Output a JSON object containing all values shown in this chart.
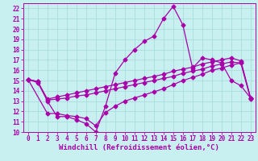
{
  "xlabel": "Windchill (Refroidissement éolien,°C)",
  "bg_color": "#c8f0f0",
  "grid_color": "#aadddd",
  "line_color": "#aa00aa",
  "xlim": [
    -0.5,
    23.5
  ],
  "ylim": [
    10,
    22.5
  ],
  "yticks": [
    10,
    11,
    12,
    13,
    14,
    15,
    16,
    17,
    18,
    19,
    20,
    21,
    22
  ],
  "xticks": [
    0,
    1,
    2,
    3,
    4,
    5,
    6,
    7,
    8,
    9,
    10,
    11,
    12,
    13,
    14,
    15,
    16,
    17,
    18,
    19,
    20,
    21,
    22,
    23
  ],
  "line1_x": [
    0,
    1,
    2,
    3,
    4,
    5,
    6,
    7,
    8,
    9,
    10,
    11,
    12,
    13,
    14,
    15,
    16,
    17,
    18,
    19,
    20,
    21,
    22,
    23
  ],
  "line1_y": [
    15.1,
    14.9,
    13.0,
    11.5,
    11.5,
    11.2,
    10.8,
    10.0,
    12.5,
    15.7,
    17.0,
    18.0,
    18.8,
    19.3,
    21.0,
    22.2,
    20.4,
    16.2,
    17.2,
    17.0,
    16.7,
    15.0,
    14.5,
    13.3
  ],
  "line2_x": [
    0,
    2,
    3,
    4,
    5,
    6,
    7,
    8,
    9,
    10,
    11,
    12,
    13,
    14,
    15,
    16,
    17,
    18,
    19,
    20,
    21,
    22,
    23
  ],
  "line2_y": [
    15.1,
    11.8,
    11.8,
    11.6,
    11.5,
    11.3,
    10.6,
    11.9,
    12.5,
    13.0,
    13.3,
    13.6,
    13.9,
    14.2,
    14.6,
    15.0,
    15.3,
    15.6,
    16.0,
    16.2,
    16.5,
    16.7,
    13.3
  ],
  "line3_x": [
    0,
    1,
    2,
    3,
    4,
    5,
    6,
    7,
    8,
    9,
    10,
    11,
    12,
    13,
    14,
    15,
    16,
    17,
    18,
    19,
    20,
    21,
    22,
    23
  ],
  "line3_y": [
    15.1,
    14.9,
    13.2,
    13.4,
    13.6,
    13.8,
    14.0,
    14.2,
    14.4,
    14.6,
    14.8,
    15.0,
    15.2,
    15.4,
    15.6,
    15.9,
    16.1,
    16.3,
    16.6,
    16.8,
    17.0,
    17.2,
    16.9,
    13.3
  ],
  "line4_x": [
    0,
    1,
    2,
    3,
    4,
    5,
    6,
    7,
    8,
    9,
    10,
    11,
    12,
    13,
    14,
    15,
    16,
    17,
    18,
    19,
    20,
    21,
    22,
    23
  ],
  "line4_y": [
    15.1,
    14.8,
    13.1,
    13.2,
    13.3,
    13.5,
    13.6,
    13.8,
    14.0,
    14.2,
    14.4,
    14.6,
    14.8,
    15.0,
    15.2,
    15.4,
    15.7,
    15.9,
    16.1,
    16.4,
    16.6,
    16.8,
    16.7,
    13.2
  ],
  "marker": "D",
  "markersize": 2.5,
  "linewidth": 0.9,
  "tick_fontsize": 5.5,
  "label_fontsize": 6.5
}
